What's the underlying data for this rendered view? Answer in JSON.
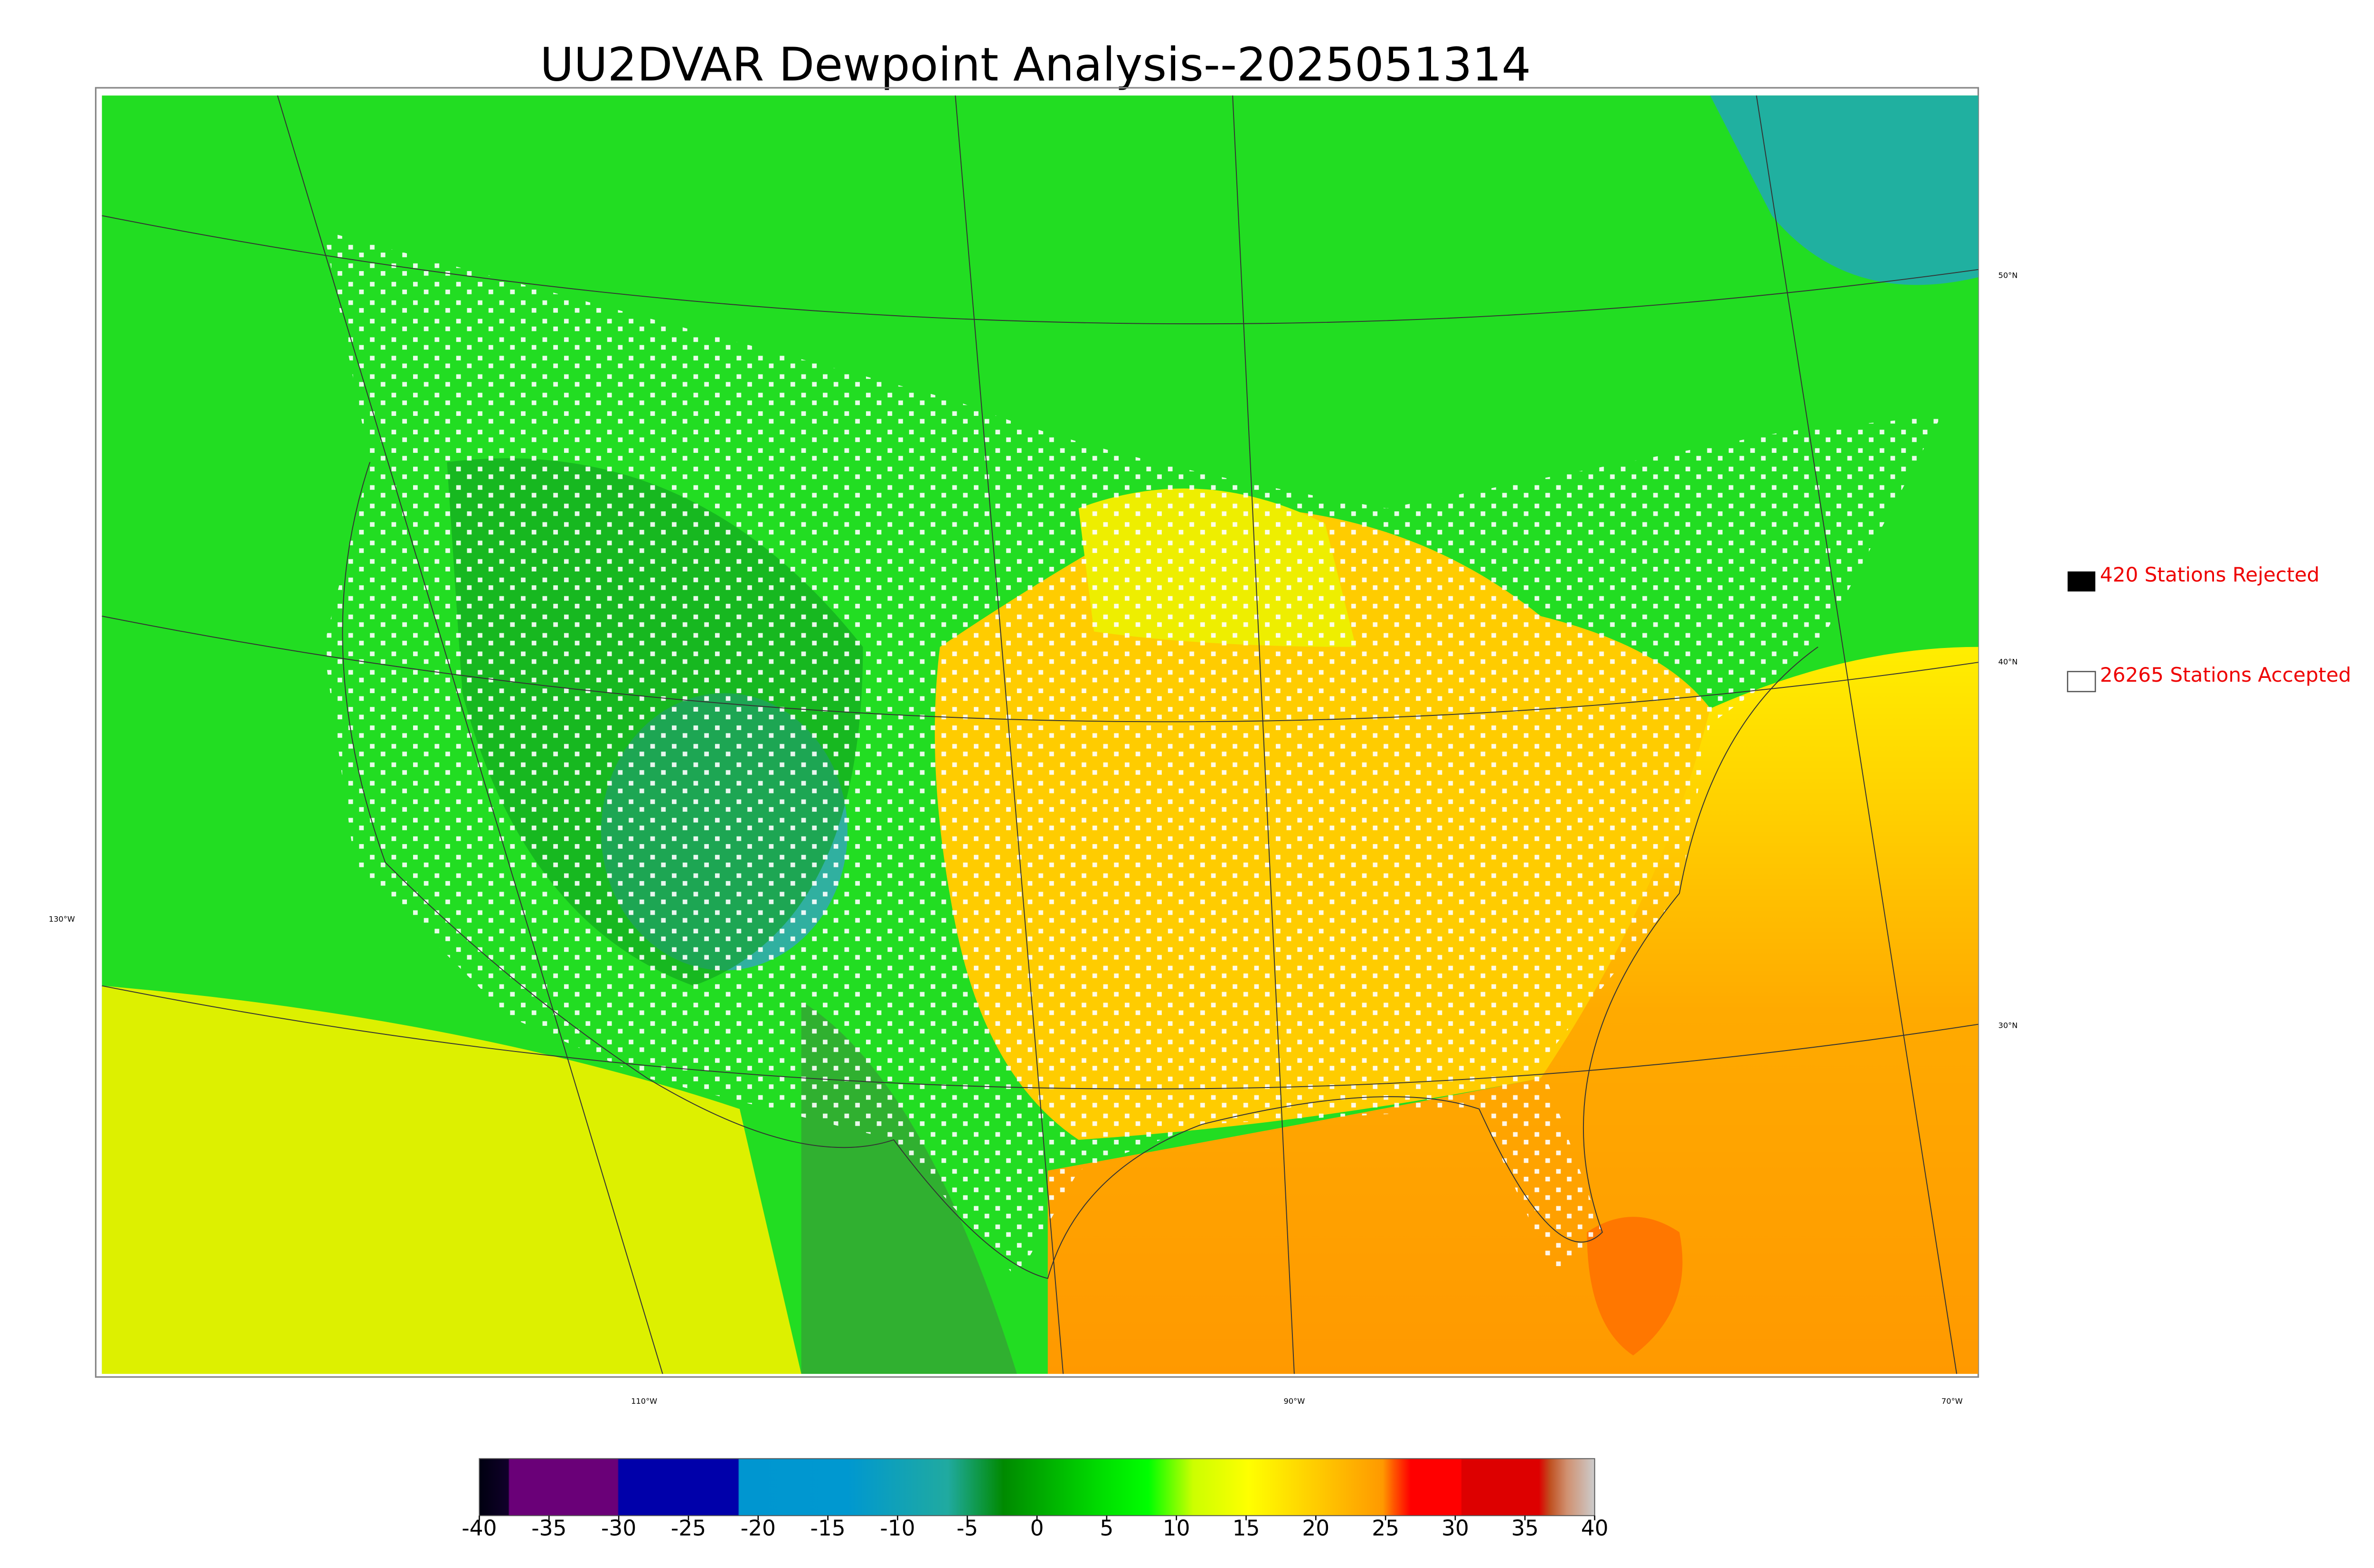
{
  "title": "UU2DVAR Dewpoint Analysis--2025051314",
  "legend": {
    "items": [
      {
        "label": "420 Stations Rejected"
      },
      {
        "label": "26265 Stations Accepted"
      }
    ]
  },
  "map": {
    "lat_labels": [
      "50°N",
      "40°N",
      "30°N"
    ],
    "lon_labels": [
      "130°W",
      "110°W",
      "90°W",
      "70°W"
    ]
  },
  "colorbar": {
    "lim": [
      -40,
      40
    ],
    "ticks": [
      -40,
      -35,
      -30,
      -25,
      -20,
      -15,
      -10,
      -5,
      0,
      5,
      10,
      15,
      20,
      25,
      30,
      35,
      40
    ]
  }
}
